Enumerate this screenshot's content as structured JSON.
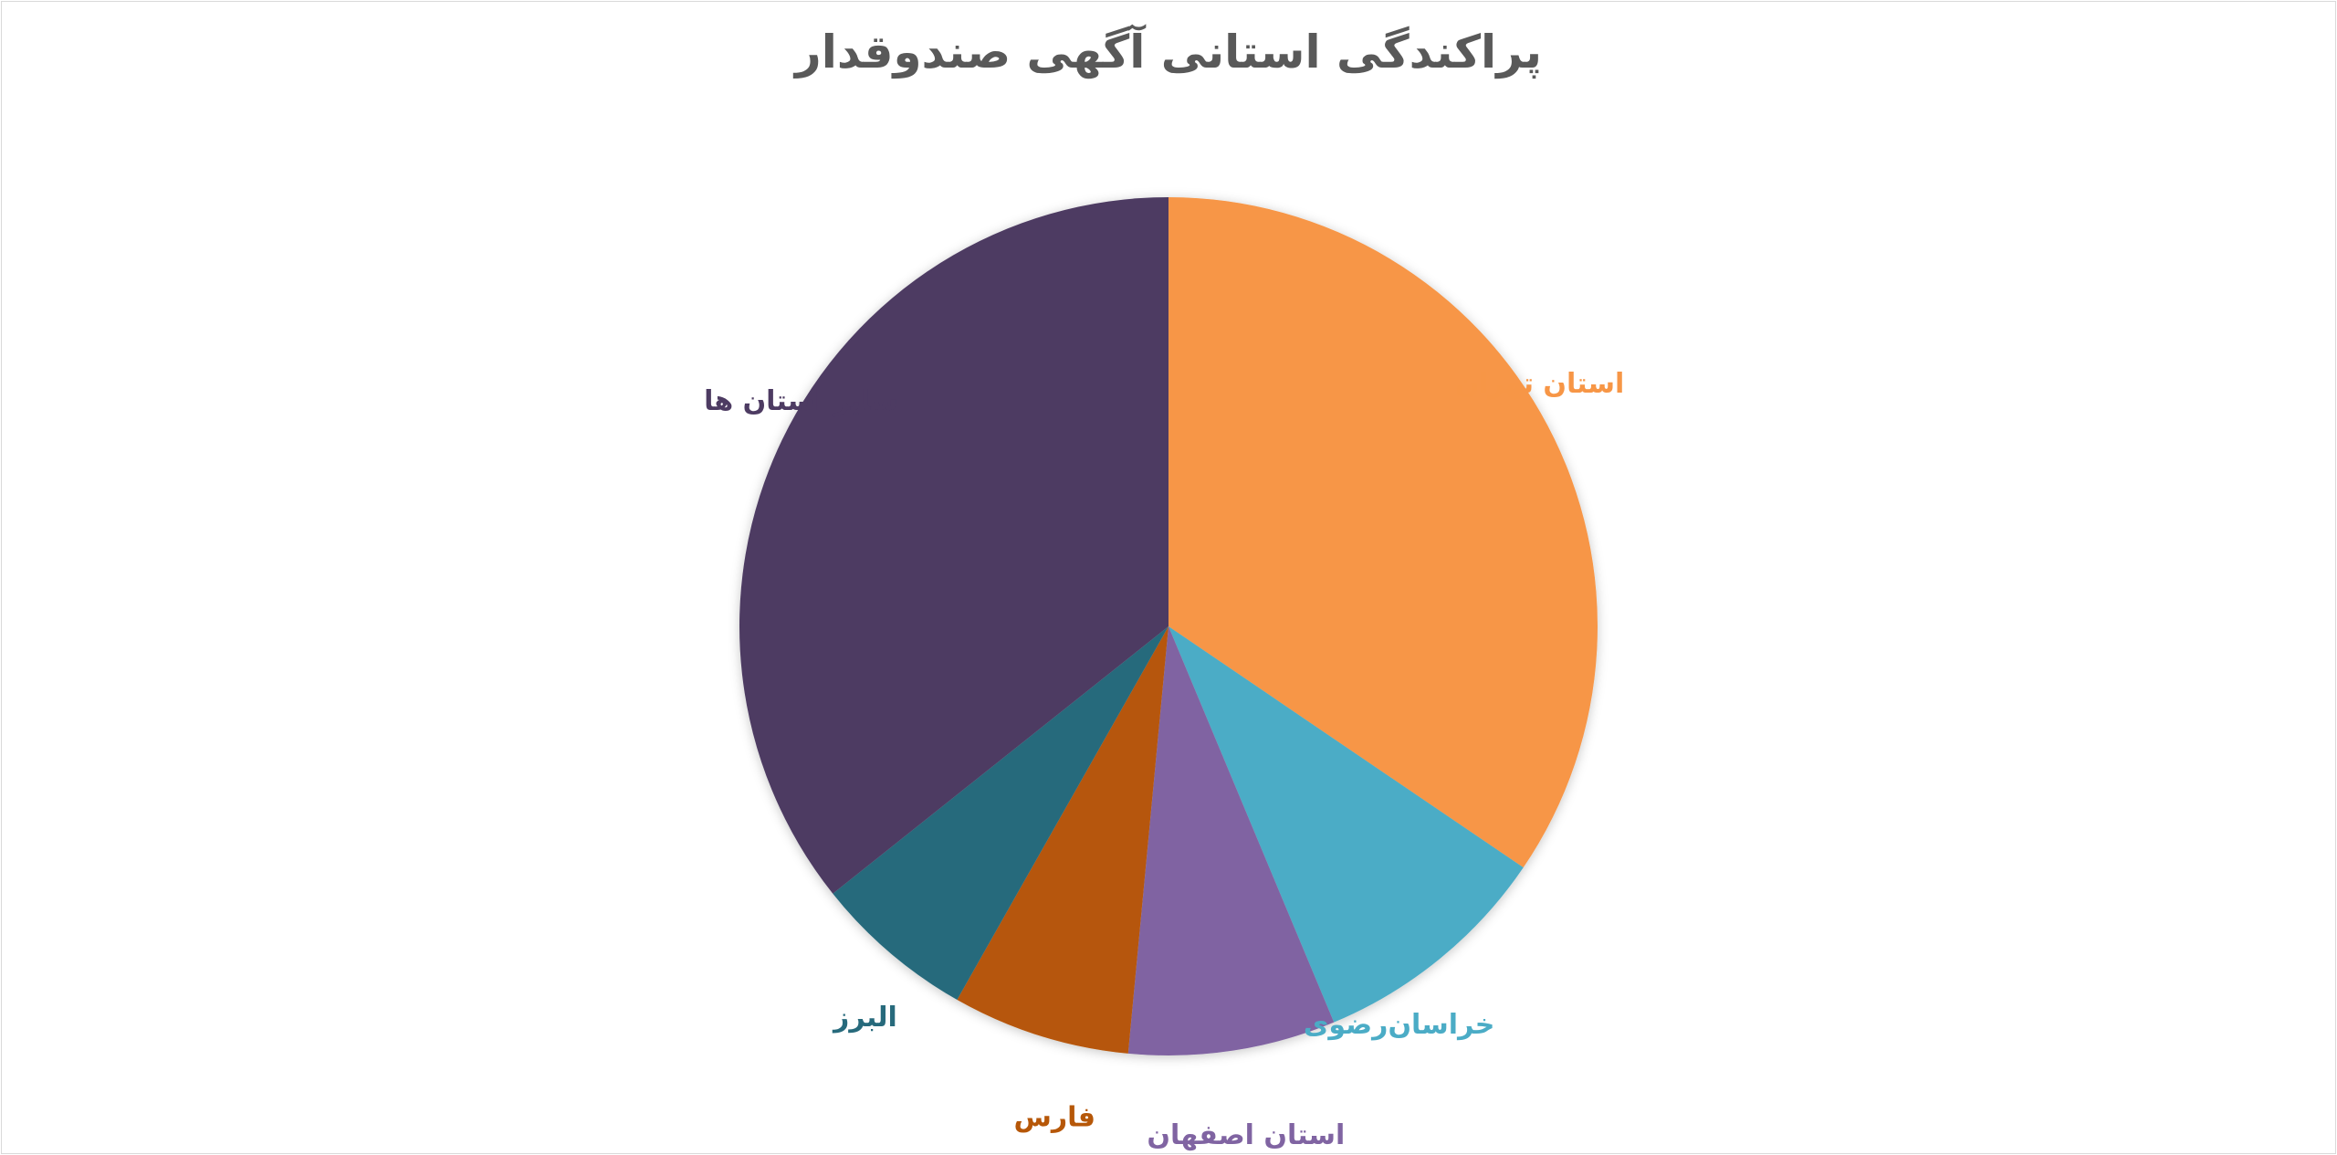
{
  "chart_data": {
    "type": "pie",
    "title": "پراکندگی استانی آگهی صندوقدار",
    "categories": [
      "استان تهران",
      "خراسان‌رضوی",
      "استان اصفهان",
      "فارس",
      "البرز",
      "سایر استان ها"
    ],
    "values": [
      34.5,
      9.2,
      7.8,
      6.7,
      6.1,
      35.7
    ],
    "colors": [
      "#F79646",
      "#4BACC6",
      "#8064A2",
      "#B65708",
      "#276A7C",
      "#4D3B62"
    ],
    "start_angle_deg": 0,
    "direction": "clockwise",
    "legend": "none",
    "data_labels": "category-name-outside"
  }
}
